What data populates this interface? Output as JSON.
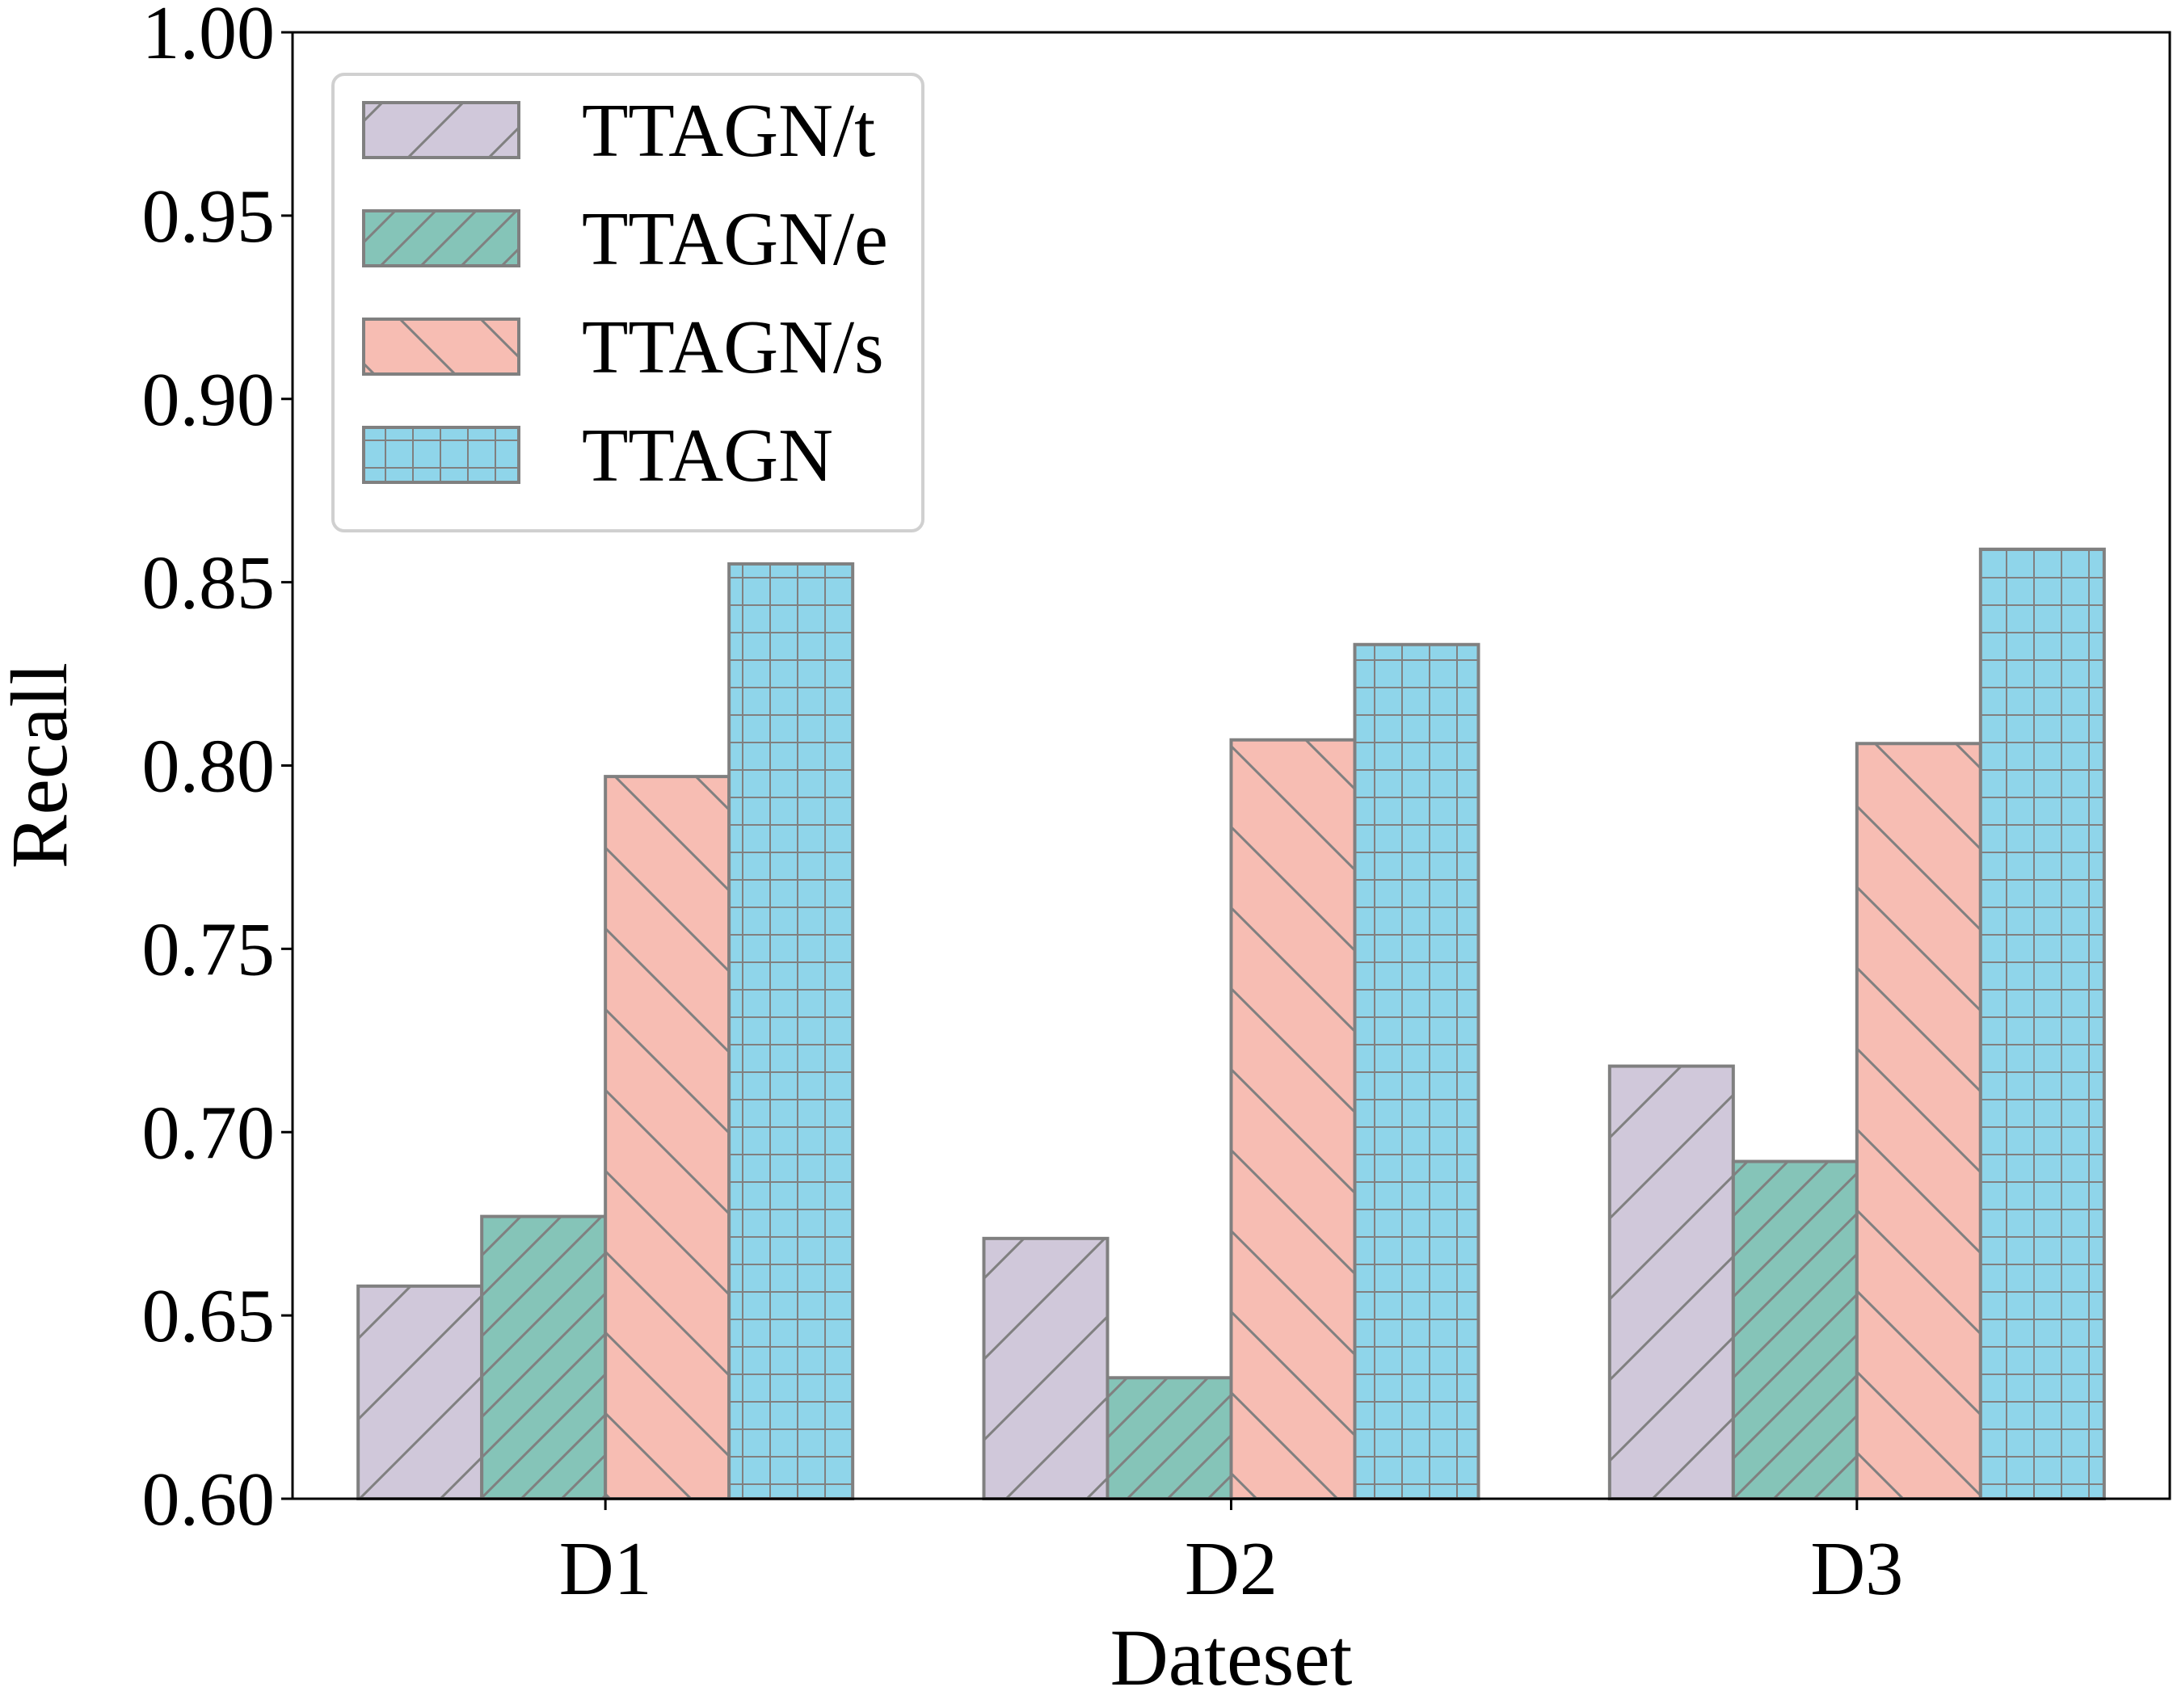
{
  "chart_data": {
    "type": "bar",
    "xlabel": "Dateset",
    "ylabel": "Recall",
    "categories": [
      "D1",
      "D2",
      "D3"
    ],
    "ylim": [
      0.6,
      1.0
    ],
    "yticks": [
      "0.60",
      "0.65",
      "0.70",
      "0.75",
      "0.80",
      "0.85",
      "0.90",
      "0.95",
      "1.00"
    ],
    "grid": false,
    "legend_position": "top-left",
    "series": [
      {
        "name": "TTAGN/t",
        "values": [
          0.658,
          0.671,
          0.718
        ],
        "color": "#d0c8da",
        "hatch": "/"
      },
      {
        "name": "TTAGN/e",
        "values": [
          0.677,
          0.633,
          0.692
        ],
        "color": "#85c4b8",
        "hatch": "//"
      },
      {
        "name": "TTAGN/s",
        "values": [
          0.797,
          0.807,
          0.806
        ],
        "color": "#f7bdb3",
        "hatch": "\\"
      },
      {
        "name": "TTAGN",
        "values": [
          0.855,
          0.833,
          0.859
        ],
        "color": "#8fd5ea",
        "hatch": "+"
      }
    ],
    "edge_color": "#808080"
  }
}
